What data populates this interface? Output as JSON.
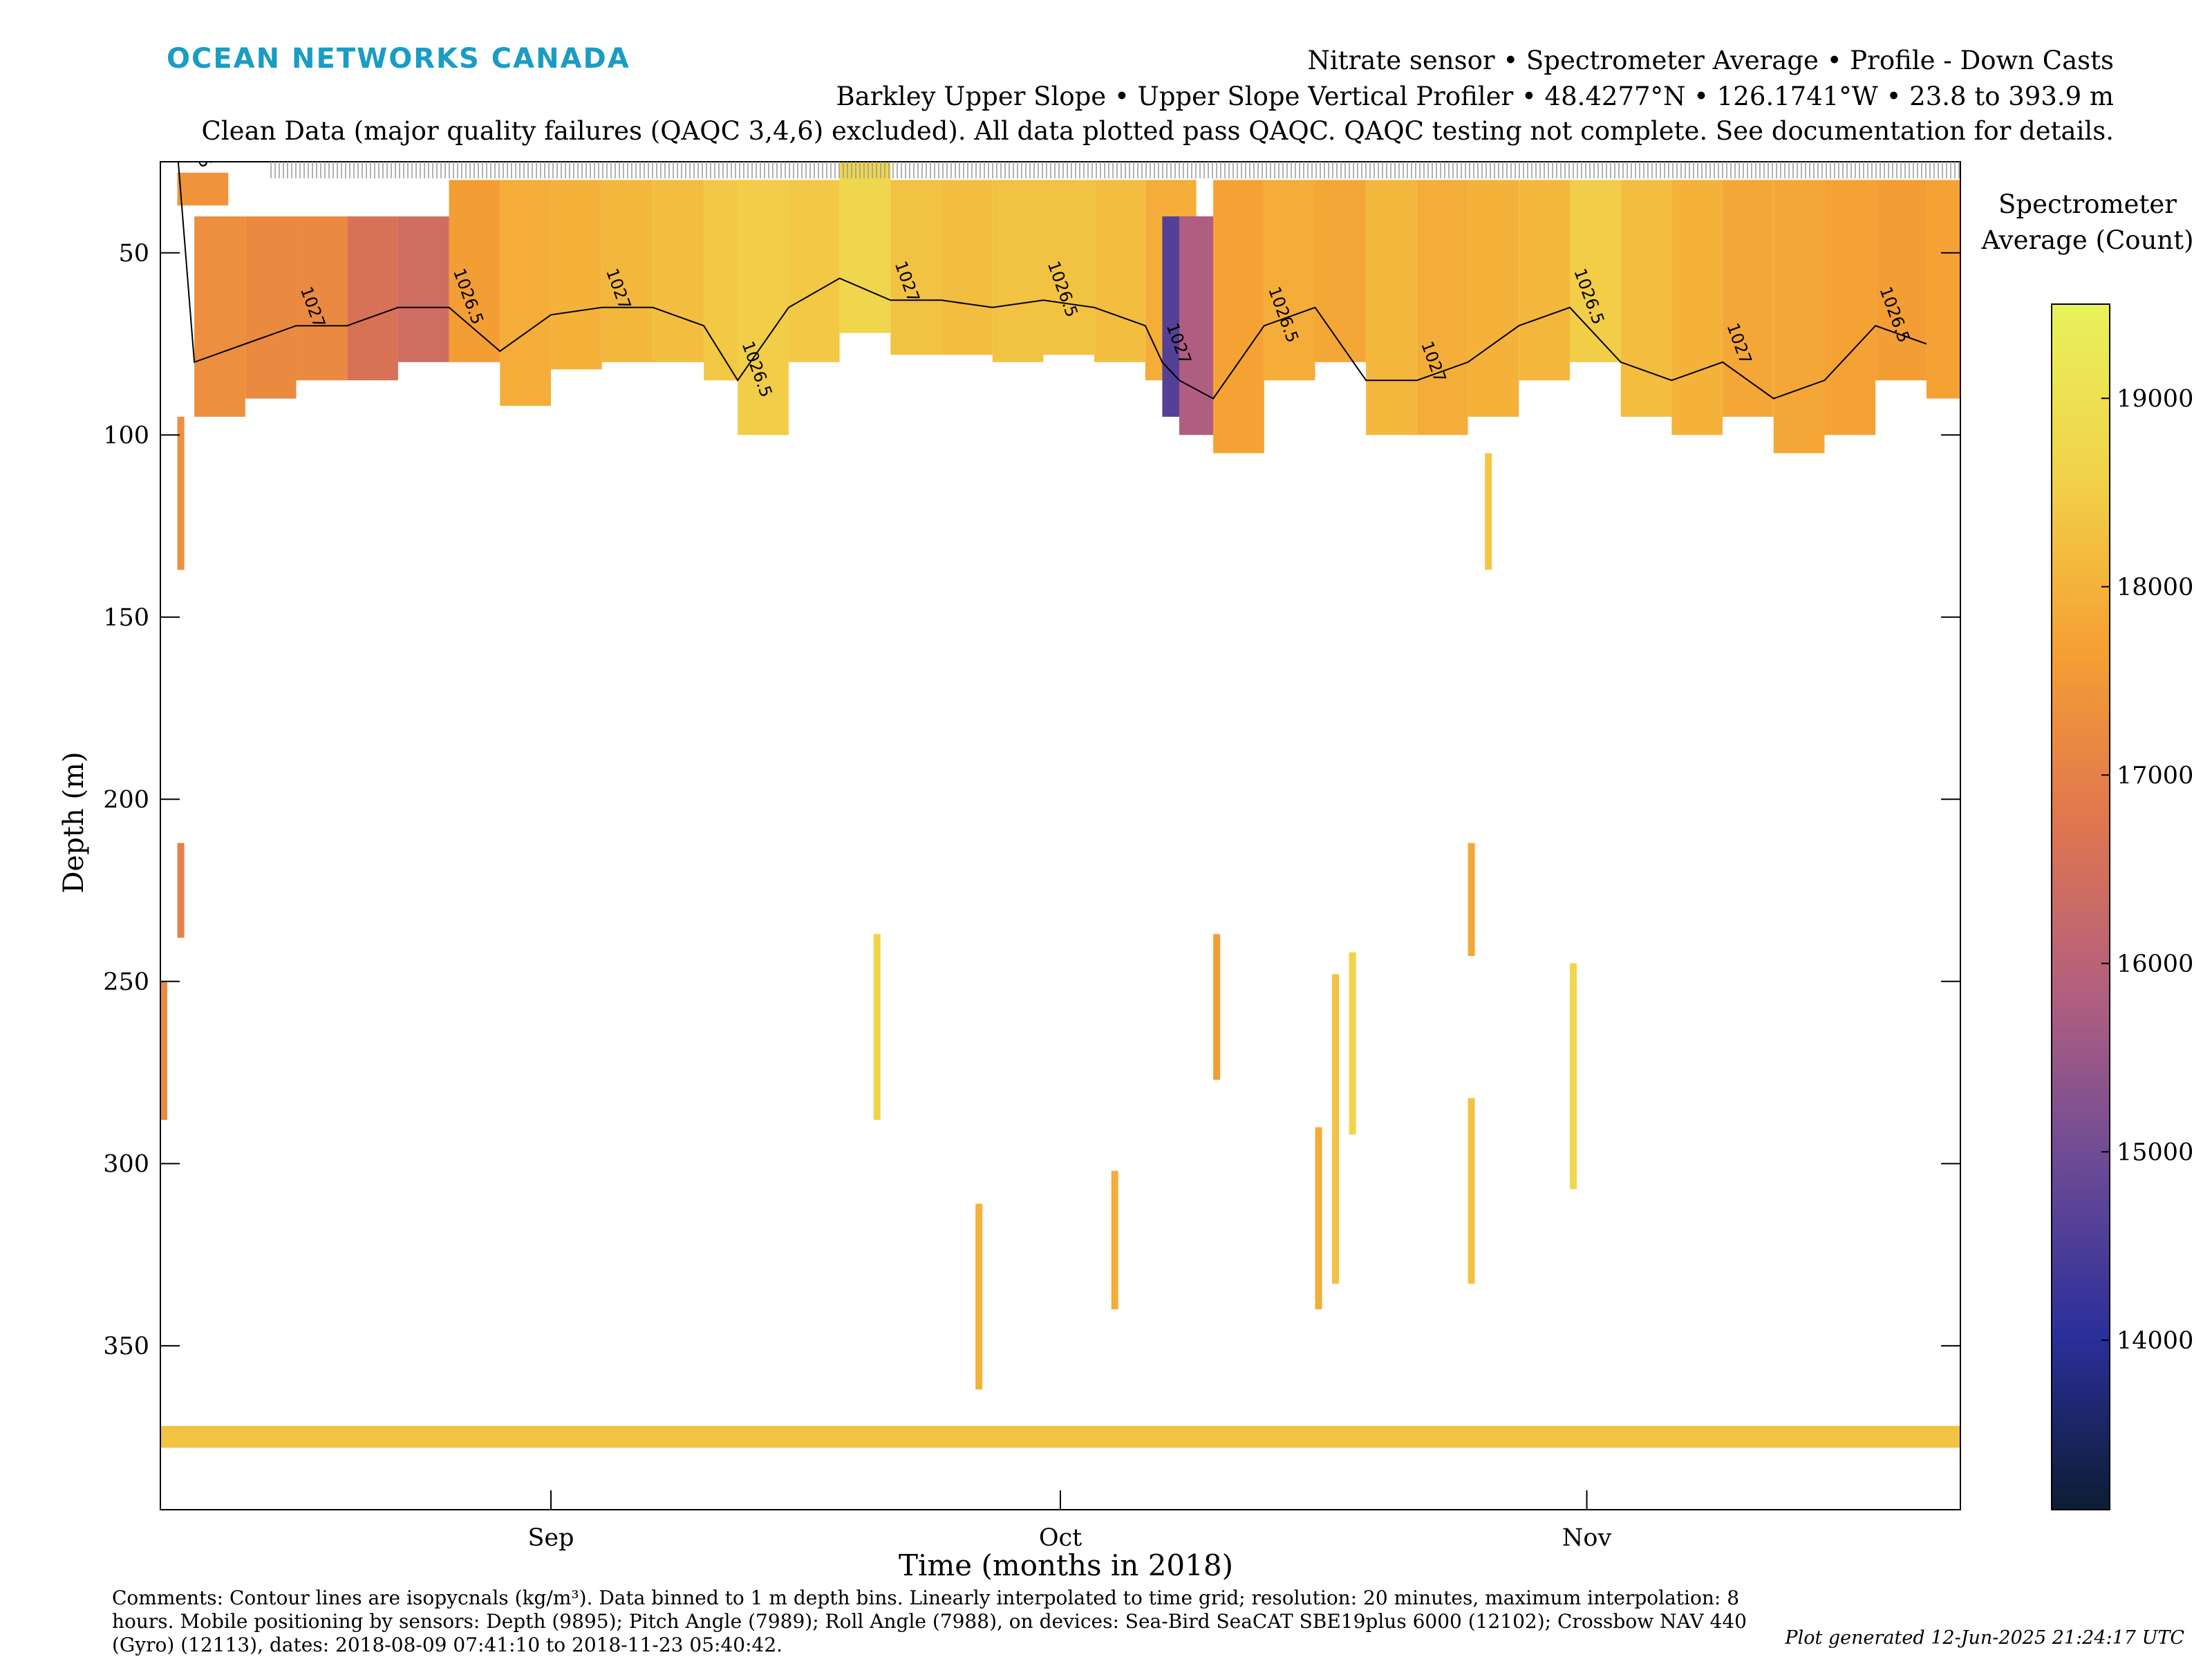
{
  "brand": "OCEAN NETWORKS CANADA",
  "header": {
    "line1": "Nitrate sensor • Spectrometer Average • Profile - Down Casts",
    "line2": "Barkley Upper Slope • Upper Slope Vertical Profiler • 48.4277°N • 126.1741°W • 23.8 to 393.9 m",
    "line3": "Clean Data (major quality failures (QAQC 3,4,6) excluded). All data plotted pass QAQC. QAQC testing not complete. See documentation for details."
  },
  "footer": {
    "comments": "Comments: Contour lines are isopycnals (kg/m³). Data binned to 1 m depth bins. Linearly interpolated to time grid; resolution: 20 minutes, maximum interpolation: 8 hours. Mobile positioning by sensors: Depth (9895); Pitch Angle (7989); Roll Angle (7988), on devices: Sea-Bird SeaCAT SBE19plus 6000 (12102); Crossbow NAV 440 (Gyro) (12113), dates: 2018-08-09 07:41:10 to 2018-11-23 05:40:42.",
    "generated": "Plot generated 12-Jun-2025 21:24:17 UTC"
  },
  "chart_data": {
    "type": "heatmap",
    "xlabel": "Time (months in 2018)",
    "ylabel": "Depth (m)",
    "x_range_days_since": [
      "2018-08-09",
      "2018-11-23"
    ],
    "x_ticks": [
      {
        "label": "Sep",
        "date": "2018-09-01"
      },
      {
        "label": "Oct",
        "date": "2018-10-01"
      },
      {
        "label": "Nov",
        "date": "2018-11-01"
      }
    ],
    "ylim": [
      25,
      395
    ],
    "y_reversed": true,
    "y_ticks": [
      50,
      100,
      150,
      200,
      250,
      300,
      350
    ],
    "colorbar": {
      "title": "Spectrometer Average (Count)",
      "range": [
        13100,
        19500
      ],
      "ticks": [
        14000,
        15000,
        16000,
        17000,
        18000,
        19000
      ],
      "colormap": [
        "#0c1d33",
        "#2a2f9a",
        "#6b4a96",
        "#b25f7f",
        "#e0764f",
        "#f5a033",
        "#f1d24a",
        "#e8f25a"
      ]
    },
    "contour_label": [
      "1026.5",
      "1027"
    ],
    "surface_profiles": [
      {
        "date": "2018-08-10",
        "top": 28,
        "bottom": 37,
        "value": 17400
      },
      {
        "date": "2018-08-11",
        "top": 40,
        "bottom": 95,
        "value": 17300
      },
      {
        "date": "2018-08-14",
        "top": 40,
        "bottom": 90,
        "value": 17200
      },
      {
        "date": "2018-08-17",
        "top": 40,
        "bottom": 85,
        "value": 17200
      },
      {
        "date": "2018-08-20",
        "top": 40,
        "bottom": 85,
        "value": 16600
      },
      {
        "date": "2018-08-23",
        "top": 40,
        "bottom": 80,
        "value": 16400
      },
      {
        "date": "2018-08-26",
        "top": 30,
        "bottom": 80,
        "value": 17600
      },
      {
        "date": "2018-08-29",
        "top": 30,
        "bottom": 92,
        "value": 17900
      },
      {
        "date": "2018-09-01",
        "top": 30,
        "bottom": 82,
        "value": 18000
      },
      {
        "date": "2018-09-04",
        "top": 30,
        "bottom": 80,
        "value": 18100
      },
      {
        "date": "2018-09-07",
        "top": 30,
        "bottom": 80,
        "value": 18200
      },
      {
        "date": "2018-09-10",
        "top": 30,
        "bottom": 85,
        "value": 18400
      },
      {
        "date": "2018-09-12",
        "top": 30,
        "bottom": 100,
        "value": 18500
      },
      {
        "date": "2018-09-15",
        "top": 30,
        "bottom": 80,
        "value": 18400
      },
      {
        "date": "2018-09-18",
        "top": 25,
        "bottom": 72,
        "value": 18700
      },
      {
        "date": "2018-09-21",
        "top": 30,
        "bottom": 78,
        "value": 18300
      },
      {
        "date": "2018-09-24",
        "top": 30,
        "bottom": 78,
        "value": 18200
      },
      {
        "date": "2018-09-27",
        "top": 30,
        "bottom": 80,
        "value": 18300
      },
      {
        "date": "2018-09-30",
        "top": 30,
        "bottom": 78,
        "value": 18300
      },
      {
        "date": "2018-10-03",
        "top": 30,
        "bottom": 80,
        "value": 18200
      },
      {
        "date": "2018-10-06",
        "top": 30,
        "bottom": 85,
        "value": 17900
      },
      {
        "date": "2018-10-07",
        "top": 40,
        "bottom": 95,
        "value": 14600
      },
      {
        "date": "2018-10-08",
        "top": 40,
        "bottom": 100,
        "value": 15800
      },
      {
        "date": "2018-10-10",
        "top": 30,
        "bottom": 105,
        "value": 17700
      },
      {
        "date": "2018-10-13",
        "top": 30,
        "bottom": 85,
        "value": 17900
      },
      {
        "date": "2018-10-16",
        "top": 30,
        "bottom": 80,
        "value": 17800
      },
      {
        "date": "2018-10-19",
        "top": 30,
        "bottom": 100,
        "value": 18100
      },
      {
        "date": "2018-10-22",
        "top": 30,
        "bottom": 100,
        "value": 17900
      },
      {
        "date": "2018-10-25",
        "top": 30,
        "bottom": 95,
        "value": 18000
      },
      {
        "date": "2018-10-28",
        "top": 30,
        "bottom": 85,
        "value": 18100
      },
      {
        "date": "2018-10-31",
        "top": 30,
        "bottom": 80,
        "value": 18500
      },
      {
        "date": "2018-11-03",
        "top": 30,
        "bottom": 95,
        "value": 18200
      },
      {
        "date": "2018-11-06",
        "top": 30,
        "bottom": 100,
        "value": 18000
      },
      {
        "date": "2018-11-09",
        "top": 30,
        "bottom": 95,
        "value": 17800
      },
      {
        "date": "2018-11-12",
        "top": 30,
        "bottom": 105,
        "value": 17800
      },
      {
        "date": "2018-11-15",
        "top": 30,
        "bottom": 100,
        "value": 17700
      },
      {
        "date": "2018-11-18",
        "top": 30,
        "bottom": 85,
        "value": 17600
      },
      {
        "date": "2018-11-21",
        "top": 30,
        "bottom": 90,
        "value": 17700
      }
    ],
    "deep_profiles": [
      {
        "date": "2018-08-09",
        "top": 250,
        "bottom": 288,
        "value": 17200
      },
      {
        "date": "2018-08-10",
        "top": 212,
        "bottom": 238,
        "value": 17000
      },
      {
        "date": "2018-08-10",
        "top": 95,
        "bottom": 137,
        "value": 17300
      },
      {
        "date": "2018-09-20",
        "top": 237,
        "bottom": 288,
        "value": 18600
      },
      {
        "date": "2018-10-10",
        "top": 237,
        "bottom": 277,
        "value": 17600
      },
      {
        "date": "2018-10-16",
        "top": 290,
        "bottom": 340,
        "value": 17900
      },
      {
        "date": "2018-10-17",
        "top": 248,
        "bottom": 333,
        "value": 18300
      },
      {
        "date": "2018-10-18",
        "top": 242,
        "bottom": 292,
        "value": 18600
      },
      {
        "date": "2018-10-25",
        "top": 212,
        "bottom": 243,
        "value": 17800
      },
      {
        "date": "2018-10-25",
        "top": 282,
        "bottom": 333,
        "value": 18300
      },
      {
        "date": "2018-10-26",
        "top": 105,
        "bottom": 137,
        "value": 18400
      },
      {
        "date": "2018-10-31",
        "top": 245,
        "bottom": 307,
        "value": 18700
      },
      {
        "date": "2018-09-26",
        "top": 311,
        "bottom": 362,
        "value": 18000
      },
      {
        "date": "2018-10-04",
        "top": 302,
        "bottom": 340,
        "value": 17900
      }
    ],
    "bottom_band": {
      "top": 372,
      "bottom": 378,
      "value": 18300
    }
  }
}
